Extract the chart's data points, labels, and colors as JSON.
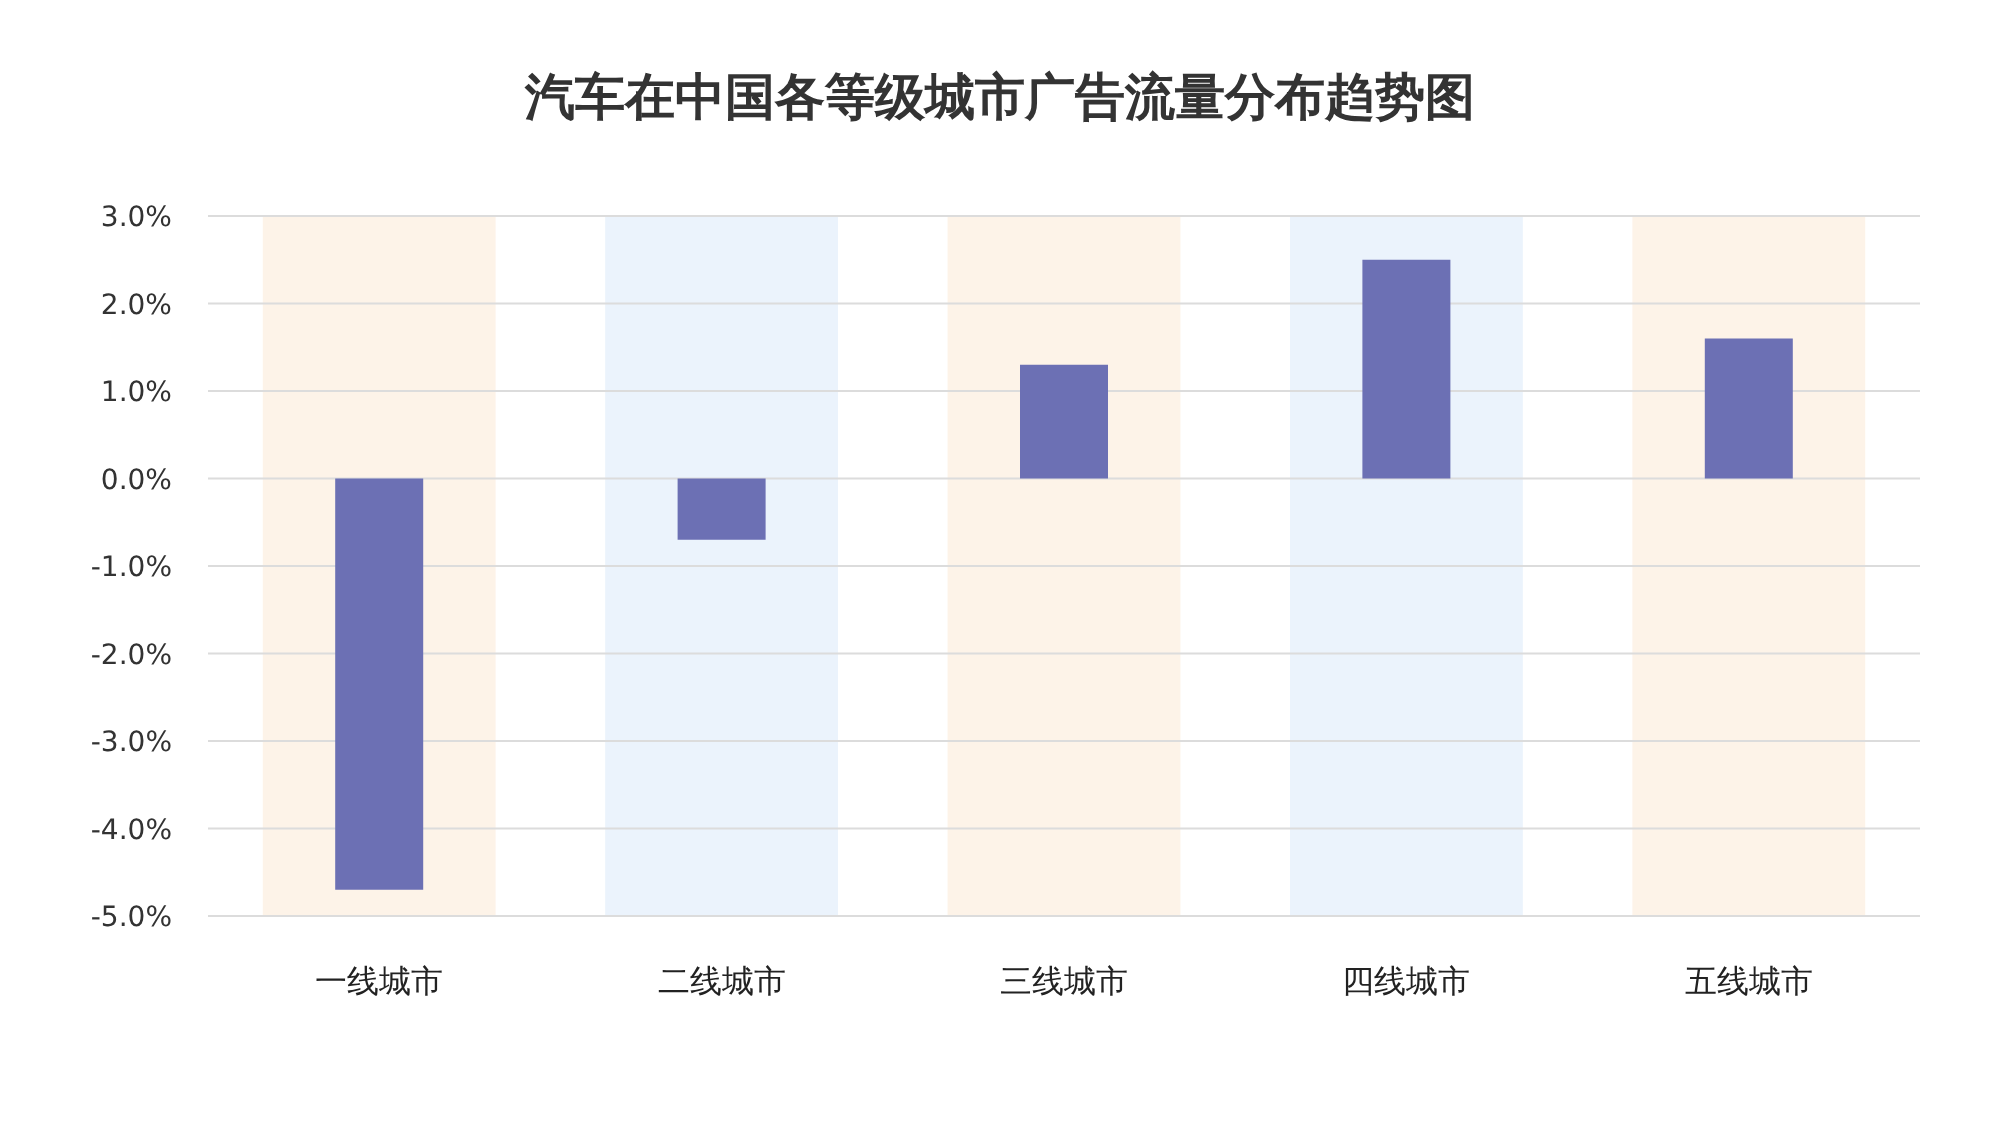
{
  "chart_data": {
    "type": "bar",
    "title": "汽车在中国各等级城市广告流量分布趋势图",
    "categories": [
      "一线城市",
      "二线城市",
      "三线城市",
      "四线城市",
      "五线城市"
    ],
    "values": [
      -4.7,
      -0.7,
      1.3,
      2.5,
      1.6
    ],
    "color": "#6c70b4",
    "ylim": [
      -5,
      3
    ],
    "yticks": [
      {
        "value": -5,
        "label": "-5.0%"
      },
      {
        "value": -4,
        "label": "-4.0%"
      },
      {
        "value": -3,
        "label": "-3.0%"
      },
      {
        "value": -2,
        "label": "-2.0%"
      },
      {
        "value": -1,
        "label": "-1.0%"
      },
      {
        "value": 0,
        "label": "0.0%"
      },
      {
        "value": 1,
        "label": "1.0%"
      },
      {
        "value": 2,
        "label": "2.0%"
      },
      {
        "value": 3,
        "label": "3.0%"
      }
    ],
    "grid": "y",
    "bands": [
      {
        "axis": "x",
        "from": "一线城市",
        "to": "一线城市",
        "color": "#fdf3e8"
      },
      {
        "axis": "x",
        "from": "二线城市",
        "to": "二线城市",
        "color": "#ebf3fc"
      },
      {
        "axis": "x",
        "from": "三线城市",
        "to": "三线城市",
        "color": "#fdf3e8"
      },
      {
        "axis": "x",
        "from": "四线城市",
        "to": "四线城市",
        "color": "#ebf3fc"
      },
      {
        "axis": "x",
        "from": "五线城市",
        "to": "五线城市",
        "color": "#fdf3e8"
      }
    ]
  }
}
